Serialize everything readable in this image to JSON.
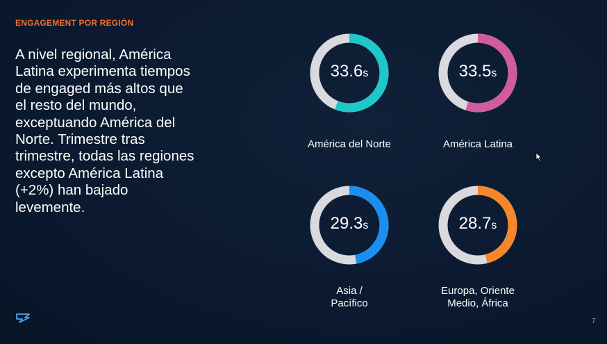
{
  "slide": {
    "section_label": "ENGAGEMENT POR REGIÓN",
    "body_text": "A nivel regional, América Latina experimenta tiempos de engaged más altos que el resto del mundo, exceptuando América del Norte. Trimestre tras trimestre, todas las regiones excepto América Latina (+2%) han bajado levemente.",
    "page_number": "7",
    "logo_icon": "brand-logo-icon",
    "cursor_icon": "mouse-pointer-icon"
  },
  "regions": [
    {
      "name": "América del Norte",
      "value": "33.6",
      "unit": "s",
      "fraction": 0.56,
      "color": "#1ec8c8"
    },
    {
      "name": "América Latina",
      "value": "33.5",
      "unit": "s",
      "fraction": 0.55,
      "color": "#d05c9e"
    },
    {
      "name": "Asia /\nPacífico",
      "value": "29.3",
      "unit": "s",
      "fraction": 0.47,
      "color": "#1a8ff0"
    },
    {
      "name": "Europa, Oriente\nMedio, África",
      "value": "28.7",
      "unit": "s",
      "fraction": 0.46,
      "color": "#f5862b"
    }
  ],
  "colors": {
    "accent": "#f36f2b",
    "donut_track": "#d9d9de"
  }
}
